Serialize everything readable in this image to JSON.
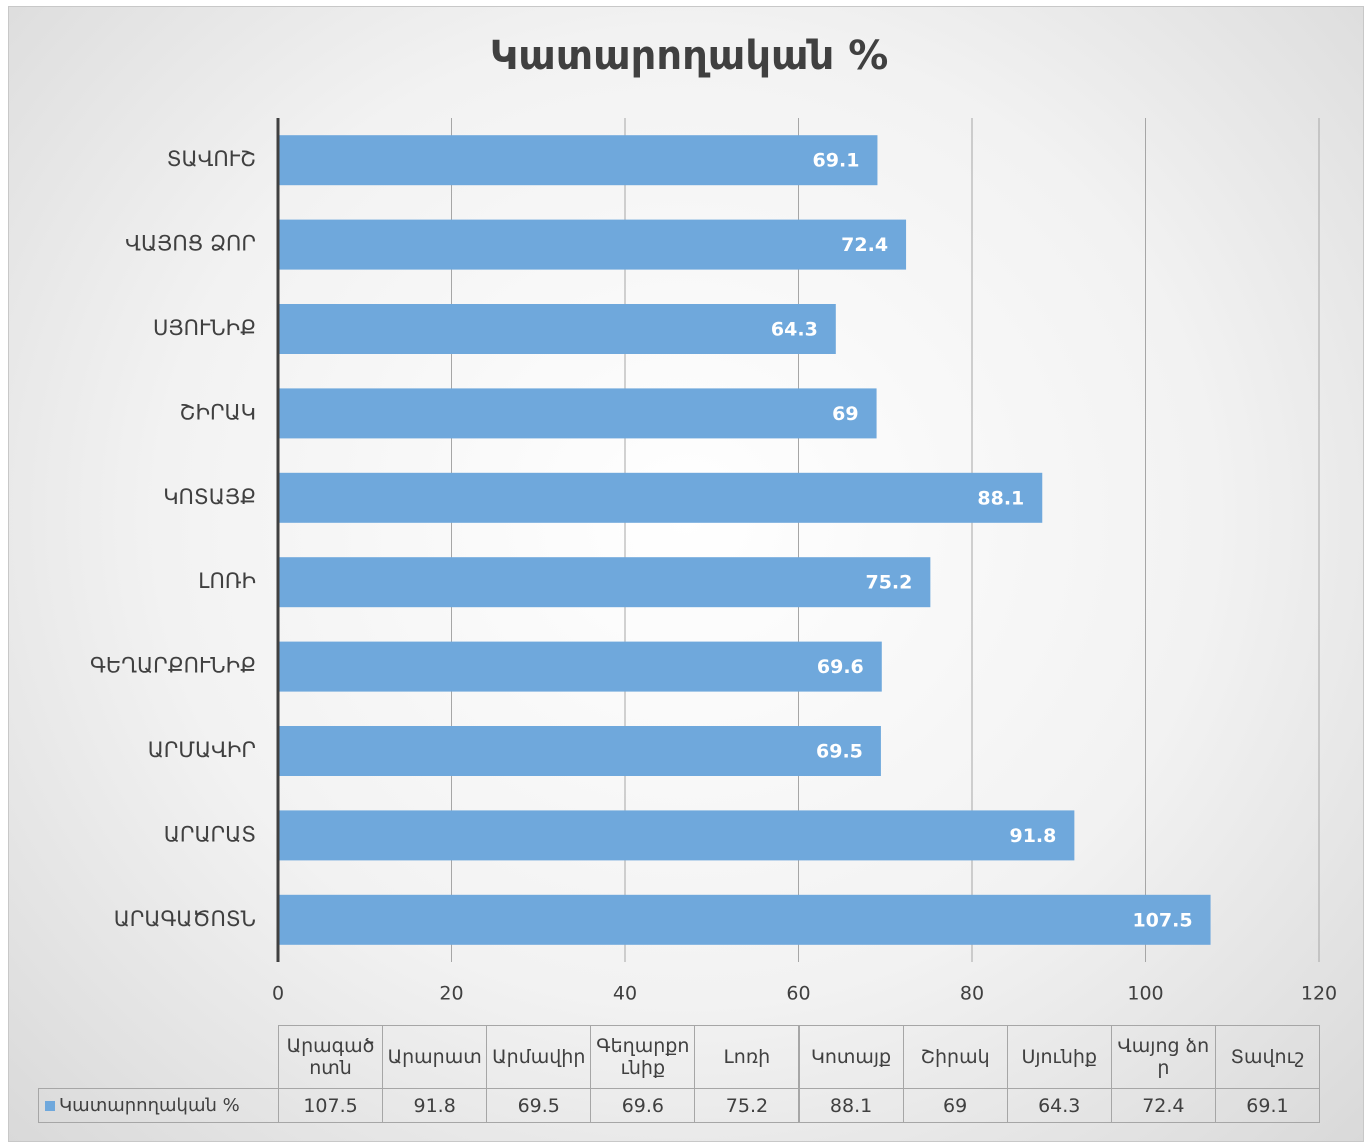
{
  "chart_data": {
    "type": "bar",
    "orientation": "horizontal",
    "title": "Կատարողական %",
    "categories": [
      "ԱՐԱԳԱԾՈՏՆ",
      "ԱՐԱՐԱՏ",
      "ԱՐՄԱՎԻՐ",
      "ԳԵՂԱՐՔՈՒՆԻՔ",
      "ԼՈՌԻ",
      "ԿՈՏԱՅՔ",
      "ՇԻՐԱԿ",
      "ՍՅՈՒՆԻՔ",
      "ՎԱՅՈՑ ՁՈՐ",
      "ՏԱՎՈՒՇ"
    ],
    "series": [
      {
        "name": "Կատարողական %",
        "color": "#6fa8dc",
        "values": [
          107.5,
          91.8,
          69.5,
          69.6,
          75.2,
          88.1,
          69,
          64.3,
          72.4,
          69.1
        ]
      }
    ],
    "xlim": [
      0,
      120
    ],
    "xticks": [
      0,
      20,
      40,
      60,
      80,
      100,
      120
    ],
    "grid": true,
    "data_table": {
      "categories": [
        "Արագածոտն",
        "Արարատ",
        "Արմավիր",
        "Գեղարքունիք",
        "Լոռի",
        "Կոտայք",
        "Շիրակ",
        "Սյունիք",
        "Վայոց ձոր",
        "Տավուշ"
      ]
    }
  }
}
